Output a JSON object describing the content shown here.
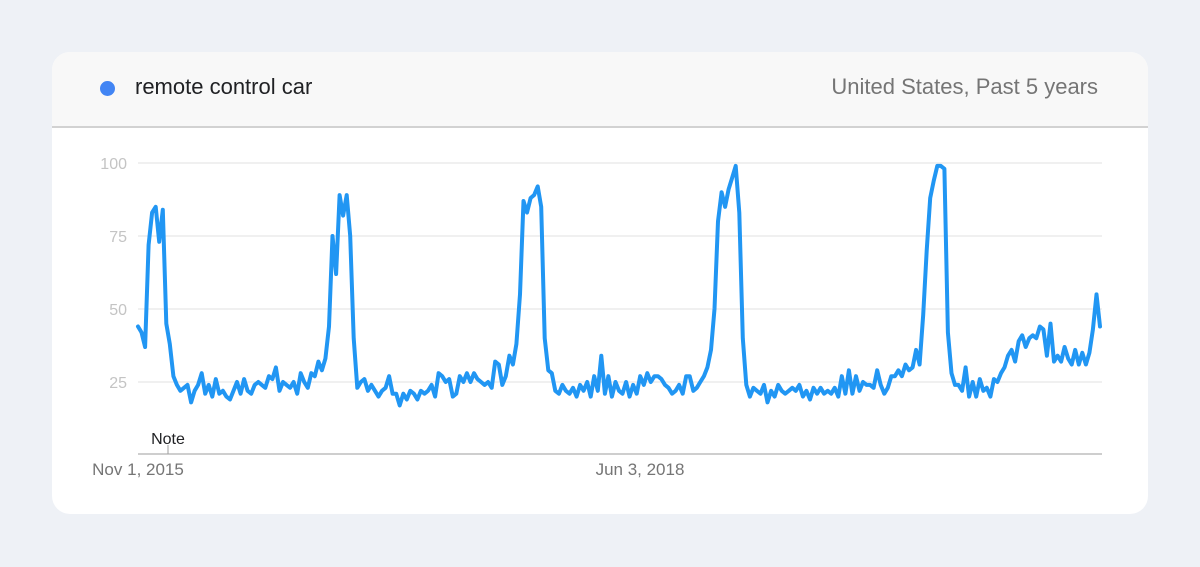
{
  "header": {
    "legend_label": "remote control car",
    "region_label": "United States, Past 5 years"
  },
  "colors": {
    "series": "#2196f3",
    "legend_dot": "#4285f4",
    "grid": "#e0e0e0",
    "tick_text": "#c4c4c4",
    "axis_text": "#757575"
  },
  "chart_data": {
    "type": "line",
    "ylim": [
      0,
      100
    ],
    "y_ticks": [
      25,
      50,
      75,
      100
    ],
    "x_tick_labels": [
      "Nov 1, 2015",
      "Jun 3, 2018"
    ],
    "note_label": "Note",
    "grid": true,
    "series": [
      {
        "name": "remote control car",
        "values": [
          44,
          42,
          37,
          72,
          83,
          85,
          73,
          84,
          45,
          38,
          27,
          24,
          22,
          23,
          24,
          18,
          22,
          24,
          28,
          21,
          24,
          20,
          26,
          21,
          22,
          20,
          19,
          22,
          25,
          21,
          26,
          22,
          21,
          24,
          25,
          24,
          23,
          27,
          26,
          30,
          22,
          25,
          24,
          23,
          25,
          21,
          28,
          25,
          23,
          28,
          27,
          32,
          29,
          33,
          44,
          75,
          62,
          89,
          82,
          89,
          75,
          40,
          23,
          25,
          26,
          22,
          24,
          22,
          20,
          22,
          23,
          27,
          21,
          21,
          17,
          21,
          19,
          22,
          21,
          19,
          22,
          21,
          22,
          24,
          20,
          28,
          27,
          25,
          26,
          20,
          21,
          27,
          25,
          28,
          25,
          28,
          26,
          25,
          24,
          25,
          23,
          32,
          31,
          24,
          27,
          34,
          31,
          38,
          55,
          87,
          83,
          88,
          89,
          92,
          85,
          40,
          29,
          28,
          22,
          21,
          24,
          22,
          21,
          23,
          20,
          24,
          22,
          25,
          20,
          27,
          22,
          34,
          21,
          27,
          20,
          25,
          22,
          21,
          25,
          20,
          24,
          21,
          27,
          24,
          28,
          25,
          27,
          27,
          26,
          24,
          23,
          21,
          22,
          24,
          21,
          27,
          27,
          22,
          23,
          25,
          27,
          30,
          36,
          50,
          80,
          90,
          85,
          91,
          95,
          99,
          83,
          40,
          24,
          20,
          23,
          22,
          21,
          24,
          18,
          22,
          20,
          24,
          22,
          21,
          22,
          23,
          22,
          24,
          20,
          22,
          19,
          23,
          21,
          23,
          21,
          22,
          21,
          23,
          20,
          27,
          21,
          29,
          21,
          27,
          22,
          25,
          24,
          24,
          23,
          29,
          24,
          21,
          23,
          27,
          27,
          29,
          27,
          31,
          29,
          30,
          36,
          31,
          48,
          70,
          88,
          94,
          99,
          99,
          98,
          42,
          28,
          24,
          24,
          22,
          30,
          20,
          25,
          20,
          26,
          22,
          23,
          20,
          26,
          25,
          28,
          30,
          34,
          36,
          32,
          39,
          41,
          37,
          40,
          41,
          40,
          44,
          43,
          34,
          45,
          32,
          34,
          32,
          37,
          33,
          31,
          36,
          31,
          35,
          31,
          35,
          43,
          55,
          44
        ]
      }
    ]
  }
}
